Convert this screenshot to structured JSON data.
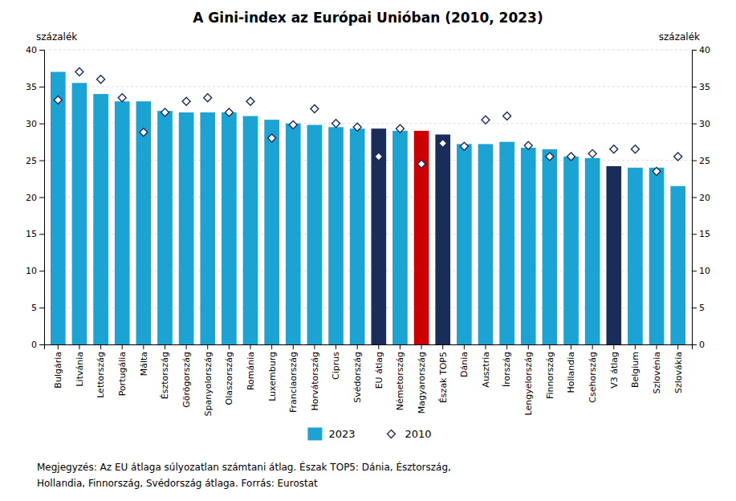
{
  "chart_data": {
    "type": "bar",
    "title": "A Gini-index az Európai Unióban (2010, 2023)",
    "ylabel": "százalék",
    "y2label": "százalék",
    "annotations": [
      "Megjegyzés: Az EU átlaga súlyozatlan számtani átlag. Észak TOP5: Dánia, Észtország,",
      "Hollandia, Finnország, Svédország átlaga. Forrás: Eurostat"
    ],
    "categories": [
      "Bulgária",
      "Litvánia",
      "Lettország",
      "Portugália",
      "Málta",
      "Észtország",
      "Görögország",
      "Spanyolország",
      "Olaszország",
      "Románia",
      "Luxemburg",
      "Franciaország",
      "Horvátország",
      "Ciprus",
      "Svédország",
      "EU átlag",
      "Németország",
      "Magyarország",
      "Észak TOP5",
      "Dánia",
      "Ausztria",
      "Írország",
      "Lengyelország",
      "Finnország",
      "Hollandia",
      "Csehország",
      "V3 átlag",
      "Belgium",
      "Szlovénia",
      "Szlovákia"
    ],
    "series": [
      {
        "name": "2023",
        "type": "bar",
        "color": "#1ba3d4",
        "colors": [
          "#1ba3d4",
          "#1ba3d4",
          "#1ba3d4",
          "#1ba3d4",
          "#1ba3d4",
          "#1ba3d4",
          "#1ba3d4",
          "#1ba3d4",
          "#1ba3d4",
          "#1ba3d4",
          "#1ba3d4",
          "#1ba3d4",
          "#1ba3d4",
          "#1ba3d4",
          "#1ba3d4",
          "#1a2d5a",
          "#1ba3d4",
          "#cc0000",
          "#1a2d5a",
          "#1ba3d4",
          "#1ba3d4",
          "#1ba3d4",
          "#1ba3d4",
          "#1ba3d4",
          "#1ba3d4",
          "#1ba3d4",
          "#1a2d5a",
          "#1ba3d4",
          "#1ba3d4",
          "#1ba3d4"
        ],
        "values": [
          37.0,
          35.5,
          34.0,
          33.0,
          33.0,
          31.7,
          31.5,
          31.5,
          31.5,
          31.0,
          30.5,
          30.0,
          29.8,
          29.5,
          29.3,
          29.3,
          29.0,
          29.0,
          28.5,
          27.2,
          27.2,
          27.5,
          26.7,
          26.5,
          25.5,
          25.3,
          24.2,
          24.0,
          24.0,
          21.5
        ]
      },
      {
        "name": "2010",
        "type": "scatter",
        "marker": "diamond",
        "color": "#1a2d5a",
        "values": [
          33.2,
          37.0,
          36.0,
          33.5,
          28.8,
          31.5,
          33.0,
          33.5,
          31.5,
          33.0,
          28.0,
          29.8,
          32.0,
          30.0,
          29.5,
          25.5,
          29.3,
          24.5,
          27.3,
          26.9,
          30.5,
          31.0,
          27.0,
          25.5,
          25.5,
          25.9,
          26.5,
          26.5,
          23.5,
          25.5
        ]
      }
    ],
    "ylim": [
      0,
      40
    ],
    "yticks": [
      0,
      5,
      10,
      15,
      20,
      25,
      30,
      35,
      40
    ],
    "y2lim": [
      0,
      40
    ],
    "y2ticks": [
      0,
      5,
      10,
      15,
      20,
      25,
      30,
      35,
      40
    ],
    "grid": true,
    "legend": "bottom"
  }
}
